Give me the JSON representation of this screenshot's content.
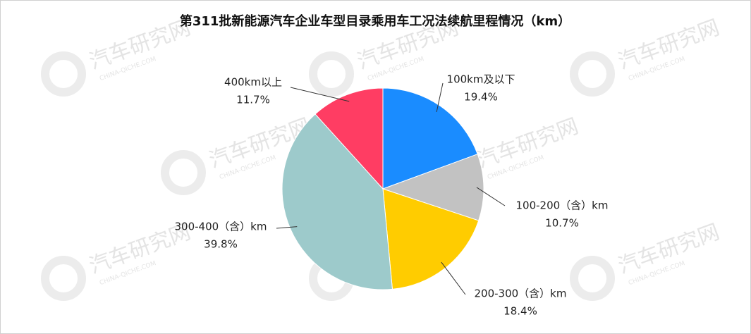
{
  "chart_data": {
    "type": "pie",
    "title": "第311批新能源汽车企业车型目录乘用车工况法续航里程情况（km）",
    "categories": [
      "100km及以下",
      "100-200（含）km",
      "200-300（含）km",
      "300-400（含）km",
      "400km以上"
    ],
    "values": [
      19.4,
      10.7,
      18.4,
      39.8,
      11.7
    ],
    "value_labels": [
      "19.4%",
      "10.7%",
      "18.4%",
      "39.8%",
      "11.7%"
    ],
    "colors": [
      "#1a8cff",
      "#c2c2c2",
      "#ffcc00",
      "#9dcacb",
      "#ff3d63"
    ]
  },
  "watermark": {
    "text": "汽车研究网",
    "subtext": "CHINA-QICHE.COM"
  }
}
